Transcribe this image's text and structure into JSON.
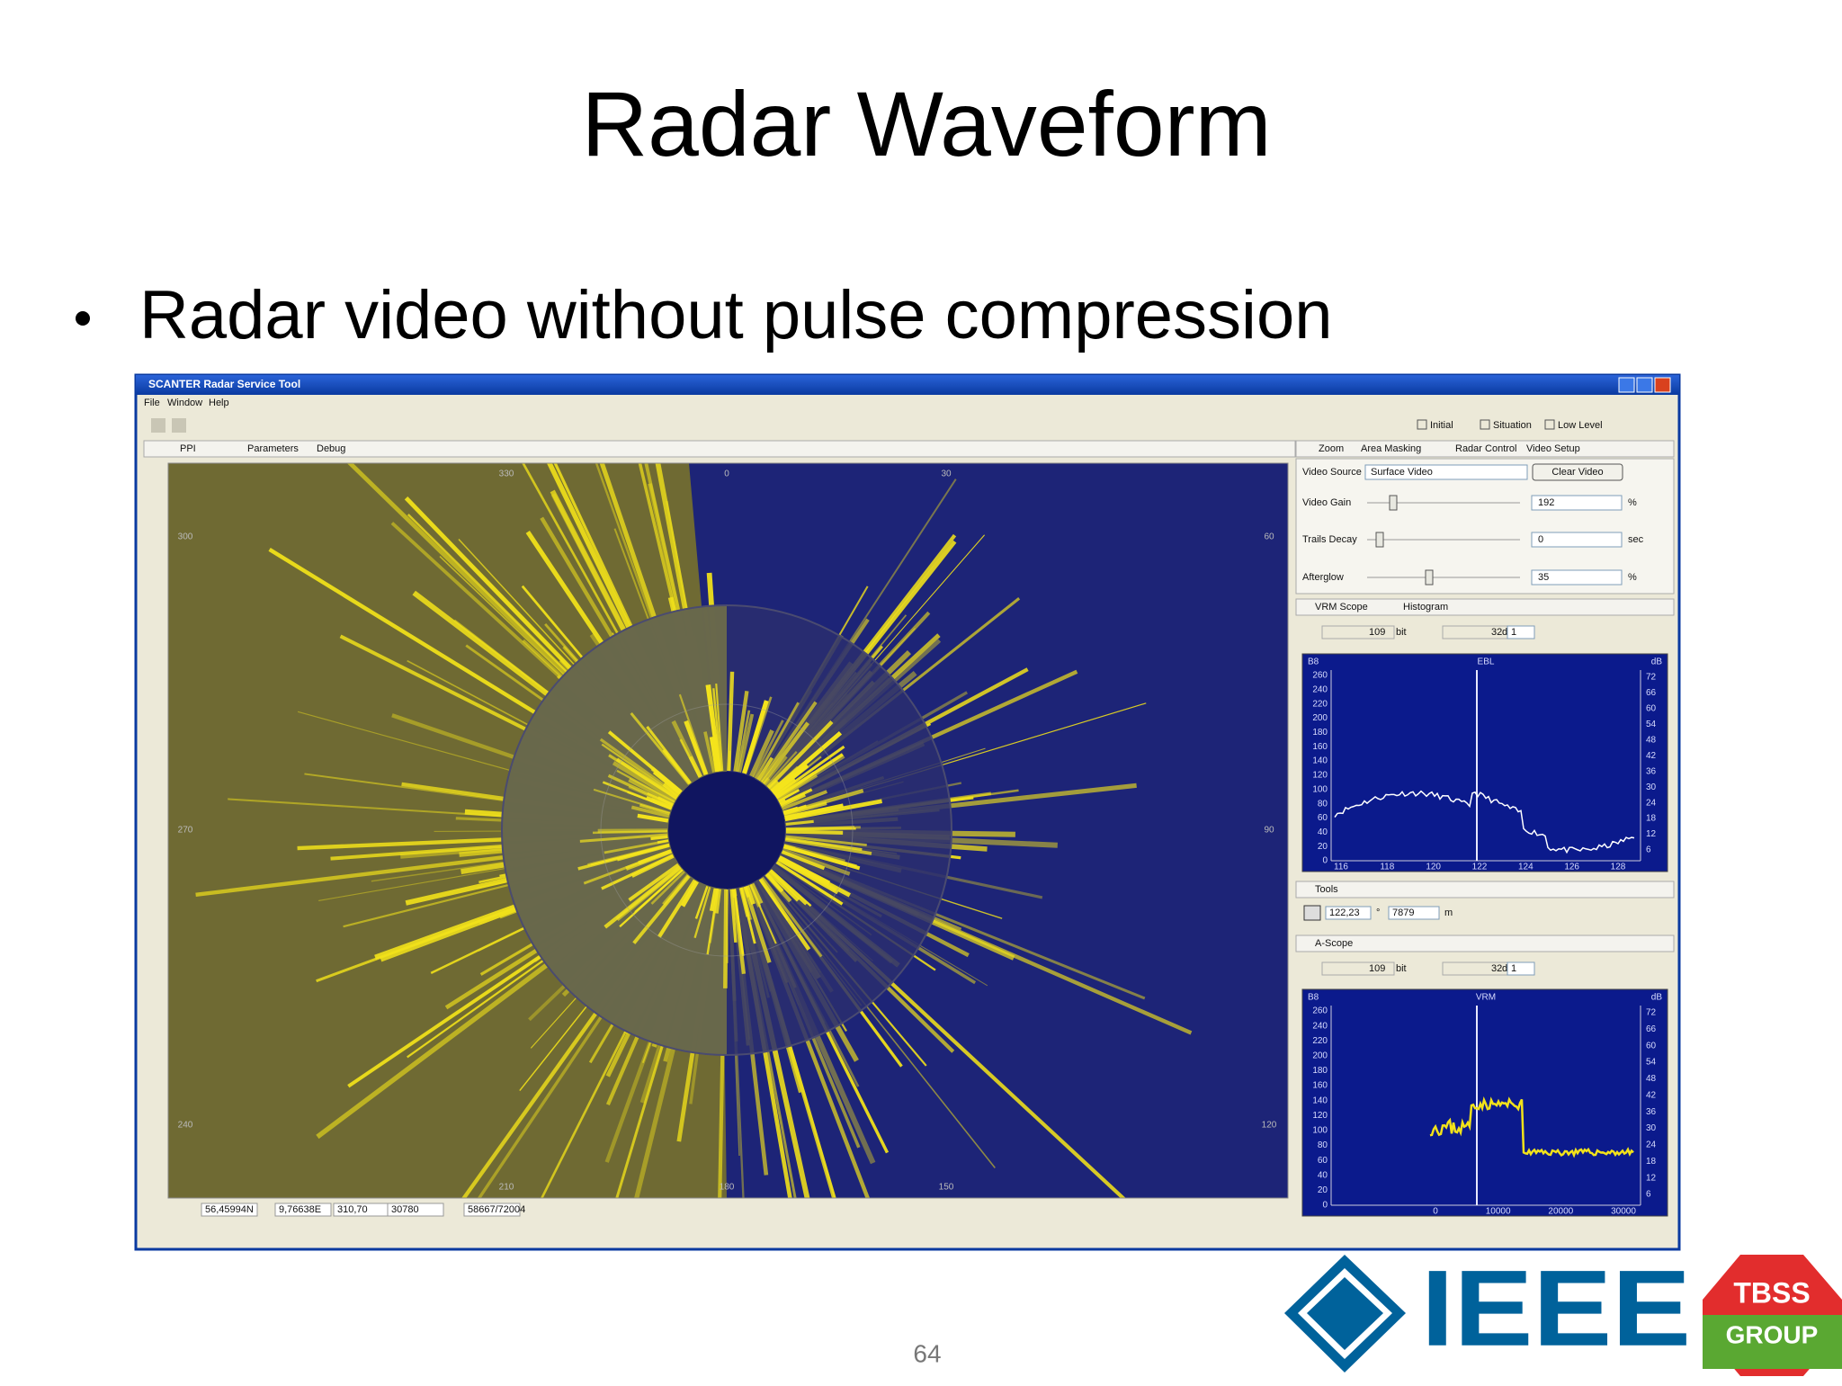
{
  "slide": {
    "title": "Radar Waveform",
    "bullet": "Radar video without pulse compression",
    "page_number": "64"
  },
  "logos": {
    "ieee": "IEEE",
    "tbss": "TBSS",
    "group": "GROUP"
  },
  "window": {
    "title": "SCANTER Radar Service Tool",
    "menu": [
      "File",
      "Window",
      "Help"
    ],
    "perspectives": [
      "Initial",
      "Situation",
      "Low Level"
    ],
    "left_tabs": [
      "PPI",
      "Parameters",
      "Debug"
    ],
    "right_tabs": [
      "Zoom",
      "Area Masking",
      "Radar Control",
      "Video Setup"
    ]
  },
  "ppi": {
    "bearings": [
      "330",
      "0",
      "30",
      "300",
      "60",
      "270",
      "90",
      "240",
      "120",
      "210",
      "180",
      "150"
    ]
  },
  "video_setup": {
    "labels": [
      "Video Source",
      "Video Gain",
      "Trails Decay",
      "Afterglow"
    ],
    "video_source": "Surface Video",
    "clear_button": "Clear Video",
    "fields": [
      "192",
      "0",
      "35"
    ],
    "units": [
      "%",
      "sec",
      "%"
    ]
  },
  "vrm_scope": {
    "tabs": [
      "VRM Scope",
      "Histogram"
    ],
    "range": "109",
    "range_unit": "bit",
    "level": "32",
    "level_unit": "dB",
    "count": "1",
    "plot_title": "EBL",
    "left_unit": "B8",
    "right_unit": "dB",
    "yticks": [
      260,
      240,
      220,
      200,
      180,
      160,
      140,
      120,
      100,
      80,
      60,
      40,
      20,
      0
    ],
    "y2ticks": [
      72,
      66,
      60,
      54,
      48,
      42,
      36,
      30,
      24,
      18,
      12,
      6
    ],
    "xticks": [
      116,
      118,
      120,
      122,
      124,
      126,
      128
    ]
  },
  "tools": {
    "title": "Tools",
    "bearing": "122,23",
    "bearing_unit": "°",
    "range": "7879",
    "range_unit": "m"
  },
  "a_scope": {
    "title": "A-Scope",
    "range": "109",
    "range_unit": "bit",
    "level": "32",
    "level_unit": "dB",
    "count": "1",
    "plot_title": "VRM",
    "left_unit": "B8",
    "right_unit": "dB",
    "yticks": [
      260,
      240,
      220,
      200,
      180,
      160,
      140,
      120,
      100,
      80,
      60,
      40,
      20,
      0
    ],
    "y2ticks": [
      72,
      66,
      60,
      54,
      48,
      42,
      36,
      30,
      24,
      18,
      12,
      6
    ],
    "xticks": [
      0,
      10000,
      20000,
      30000
    ]
  },
  "status_bar": [
    "56,45994N",
    "9,76638E",
    "310,70",
    "30780",
    "58667/72004"
  ]
}
